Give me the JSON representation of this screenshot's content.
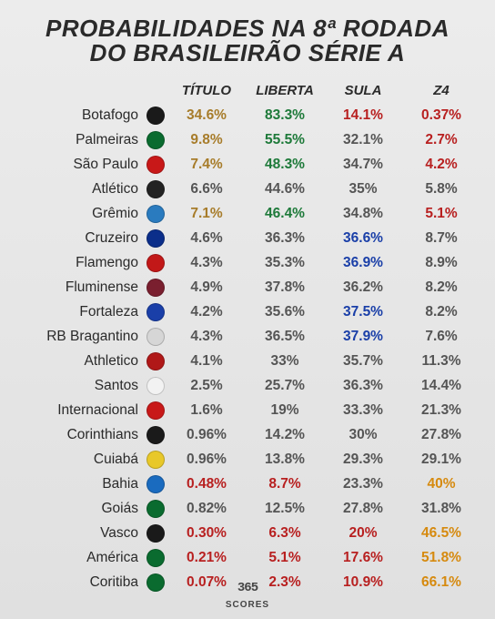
{
  "title_line1": "PROBABILIDADES NA 8ª RODADA",
  "title_line2": "DO BRASILEIRÃO SÉRIE A",
  "columns": [
    "TÍTULO",
    "LIBERTA",
    "SULA",
    "Z4"
  ],
  "footer": "365 SCORES",
  "color_classes": {
    "default": "#555555",
    "gold": "#a77c2a",
    "green": "#1e7a3a",
    "red": "#b82020",
    "blue": "#1a3fa8",
    "orange": "#d68a0f"
  },
  "rows": [
    {
      "team": "Botafogo",
      "crest": "#1a1a1a",
      "vals": [
        "34.6%",
        "83.3%",
        "14.1%",
        "0.37%"
      ],
      "cols": [
        "gold",
        "green",
        "red",
        "red"
      ]
    },
    {
      "team": "Palmeiras",
      "crest": "#0a6b2f",
      "vals": [
        "9.8%",
        "55.5%",
        "32.1%",
        "2.7%"
      ],
      "cols": [
        "gold",
        "green",
        "default",
        "red"
      ]
    },
    {
      "team": "São Paulo",
      "crest": "#c81818",
      "vals": [
        "7.4%",
        "48.3%",
        "34.7%",
        "4.2%"
      ],
      "cols": [
        "gold",
        "green",
        "default",
        "red"
      ]
    },
    {
      "team": "Atlético",
      "crest": "#222222",
      "vals": [
        "6.6%",
        "44.6%",
        "35%",
        "5.8%"
      ],
      "cols": [
        "default",
        "default",
        "default",
        "default"
      ]
    },
    {
      "team": "Grêmio",
      "crest": "#2a7bbf",
      "vals": [
        "7.1%",
        "46.4%",
        "34.8%",
        "5.1%"
      ],
      "cols": [
        "gold",
        "green",
        "default",
        "red"
      ]
    },
    {
      "team": "Cruzeiro",
      "crest": "#0b2e8a",
      "vals": [
        "4.6%",
        "36.3%",
        "36.6%",
        "8.7%"
      ],
      "cols": [
        "default",
        "default",
        "blue",
        "default"
      ]
    },
    {
      "team": "Flamengo",
      "crest": "#c21818",
      "vals": [
        "4.3%",
        "35.3%",
        "36.9%",
        "8.9%"
      ],
      "cols": [
        "default",
        "default",
        "blue",
        "default"
      ]
    },
    {
      "team": "Fluminense",
      "crest": "#7a1f2f",
      "vals": [
        "4.9%",
        "37.8%",
        "36.2%",
        "8.2%"
      ],
      "cols": [
        "default",
        "default",
        "default",
        "default"
      ]
    },
    {
      "team": "Fortaleza",
      "crest": "#1a3fa8",
      "vals": [
        "4.2%",
        "35.6%",
        "37.5%",
        "8.2%"
      ],
      "cols": [
        "default",
        "default",
        "blue",
        "default"
      ]
    },
    {
      "team": "RB Bragantino",
      "crest": "#d6d6d6",
      "vals": [
        "4.3%",
        "36.5%",
        "37.9%",
        "7.6%"
      ],
      "cols": [
        "default",
        "default",
        "blue",
        "default"
      ]
    },
    {
      "team": "Athletico",
      "crest": "#b01818",
      "vals": [
        "4.1%",
        "33%",
        "35.7%",
        "11.3%"
      ],
      "cols": [
        "default",
        "default",
        "default",
        "default"
      ]
    },
    {
      "team": "Santos",
      "crest": "#f2f2f2",
      "vals": [
        "2.5%",
        "25.7%",
        "36.3%",
        "14.4%"
      ],
      "cols": [
        "default",
        "default",
        "default",
        "default"
      ]
    },
    {
      "team": "Internacional",
      "crest": "#c81818",
      "vals": [
        "1.6%",
        "19%",
        "33.3%",
        "21.3%"
      ],
      "cols": [
        "default",
        "default",
        "default",
        "default"
      ]
    },
    {
      "team": "Corinthians",
      "crest": "#1a1a1a",
      "vals": [
        "0.96%",
        "14.2%",
        "30%",
        "27.8%"
      ],
      "cols": [
        "default",
        "default",
        "default",
        "default"
      ]
    },
    {
      "team": "Cuiabá",
      "crest": "#e8c82a",
      "vals": [
        "0.96%",
        "13.8%",
        "29.3%",
        "29.1%"
      ],
      "cols": [
        "default",
        "default",
        "default",
        "default"
      ]
    },
    {
      "team": "Bahia",
      "crest": "#1a6bbf",
      "vals": [
        "0.48%",
        "8.7%",
        "23.3%",
        "40%"
      ],
      "cols": [
        "red",
        "red",
        "default",
        "orange"
      ]
    },
    {
      "team": "Goiás",
      "crest": "#0a6b2f",
      "vals": [
        "0.82%",
        "12.5%",
        "27.8%",
        "31.8%"
      ],
      "cols": [
        "default",
        "default",
        "default",
        "default"
      ]
    },
    {
      "team": "Vasco",
      "crest": "#1a1a1a",
      "vals": [
        "0.30%",
        "6.3%",
        "20%",
        "46.5%"
      ],
      "cols": [
        "red",
        "red",
        "red",
        "orange"
      ]
    },
    {
      "team": "América",
      "crest": "#0a6b2f",
      "vals": [
        "0.21%",
        "5.1%",
        "17.6%",
        "51.8%"
      ],
      "cols": [
        "red",
        "red",
        "red",
        "orange"
      ]
    },
    {
      "team": "Coritiba",
      "crest": "#0a6b2f",
      "vals": [
        "0.07%",
        "2.3%",
        "10.9%",
        "66.1%"
      ],
      "cols": [
        "red",
        "red",
        "red",
        "orange"
      ]
    }
  ]
}
